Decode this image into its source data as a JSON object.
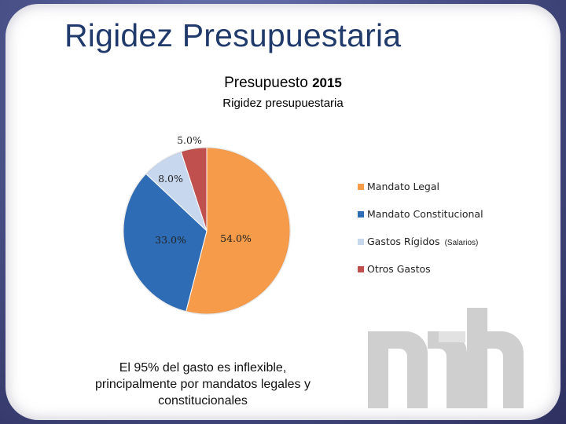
{
  "slide": {
    "title": "Rigidez Presupuestaria",
    "note": "El 95% del gasto es inflexible, principalmente por mandatos legales y constitucionales"
  },
  "chart_data": {
    "type": "pie",
    "title_main": "Presupuesto",
    "title_year": "2015",
    "subtitle": "Rigidez presupuestaria",
    "slices": [
      {
        "label": "Mandato Legal",
        "value": 54.0,
        "display": "54.0%",
        "color": "#f59b4a"
      },
      {
        "label": "Mandato Constitucional",
        "value": 33.0,
        "display": "33.0%",
        "color": "#2e6db6"
      },
      {
        "label": "Gastos Rígidos",
        "note": "(Salarios)",
        "value": 8.0,
        "display": "8.0%",
        "color": "#c7d7ee"
      },
      {
        "label": "Otros Gastos",
        "value": 5.0,
        "display": "5.0%",
        "color": "#c0504d"
      }
    ],
    "legend_position": "right"
  },
  "logo": {
    "text": "mh",
    "color": "#c9c9c9"
  }
}
